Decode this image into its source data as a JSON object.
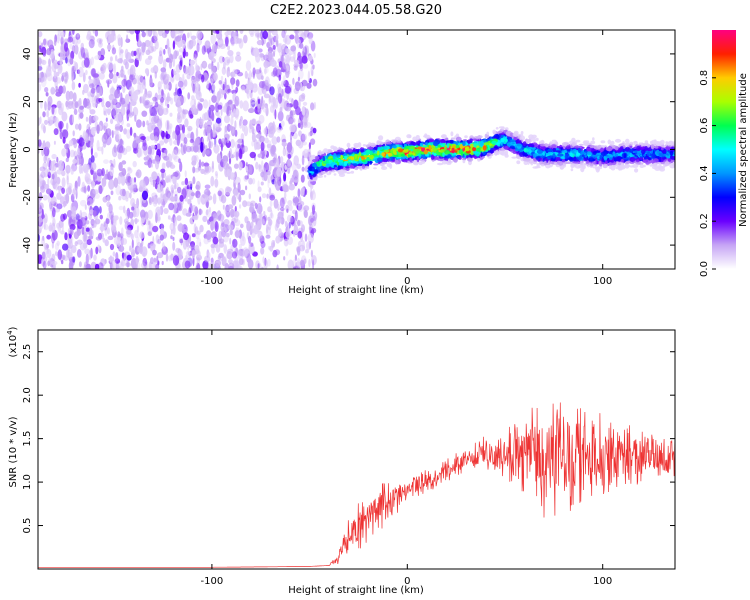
{
  "title": "C2E2.2023.044.05.58.G20",
  "chart_data": [
    {
      "type": "heatmap",
      "xlabel": "Height of straight line (km)",
      "ylabel": "Frequency (Hz)",
      "xlim": [
        -189,
        137
      ],
      "ylim": [
        -50,
        50
      ],
      "x_ticks": [
        -100,
        0,
        100
      ],
      "x_tick_labels": [
        "-100",
        "0",
        "100"
      ],
      "y_ticks": [
        -40,
        -20,
        0,
        20,
        40
      ],
      "y_tick_labels": [
        "-40",
        "-20",
        "0",
        "20",
        "40"
      ],
      "colorbar": {
        "label": "Normalized spectral amplitude",
        "range": [
          0,
          1
        ],
        "ticks": [
          0.0,
          0.2,
          0.4,
          0.6,
          0.8
        ],
        "tick_labels": [
          "0.0",
          "0.2",
          "0.4",
          "0.6",
          "0.8"
        ],
        "colormap": "rainbow (white-violet-blue-cyan-green-yellow-red-magenta)"
      },
      "noise_region_x": [
        -189,
        -47
      ],
      "signal_ridge": {
        "x": [
          -50,
          -45,
          -40,
          -30,
          -20,
          -10,
          0,
          10,
          20,
          30,
          40,
          45,
          50,
          60,
          70,
          80,
          90,
          100,
          110,
          120,
          137
        ],
        "frequency": [
          -10,
          -6,
          -5,
          -4,
          -3,
          -1,
          -1,
          0,
          0,
          0,
          1,
          3,
          4,
          0,
          -2,
          -2,
          -2,
          -3,
          -2,
          -2,
          -2
        ],
        "peak_amplitude": [
          0.4,
          0.6,
          0.7,
          0.8,
          0.8,
          0.85,
          0.9,
          0.95,
          0.95,
          0.95,
          0.85,
          0.6,
          0.5,
          0.5,
          0.5,
          0.5,
          0.5,
          0.45,
          0.45,
          0.45,
          0.45
        ]
      }
    },
    {
      "type": "line",
      "xlabel": "Height of straight line (km)",
      "ylabel": "SNR (10 * v/v)",
      "y_multiplier_label": "(x10",
      "y_multiplier_exp": "4",
      "y_multiplier_close": ")",
      "xlim": [
        -189,
        137
      ],
      "ylim": [
        0,
        27500
      ],
      "x_ticks": [
        -100,
        0,
        100
      ],
      "x_tick_labels": [
        "-100",
        "0",
        "100"
      ],
      "y_ticks": [
        5000,
        10000,
        15000,
        20000,
        25000
      ],
      "y_tick_labels": [
        "0.5",
        "1.0",
        "1.5",
        "2.0",
        "2.5"
      ],
      "color": "#ee3333",
      "series": [
        {
          "x": [
            -189,
            -160,
            -130,
            -100,
            -70,
            -50,
            -40,
            -35,
            -30,
            -25,
            -20,
            -15,
            -10,
            -5,
            0,
            5,
            10,
            15,
            20,
            25,
            30,
            35,
            40,
            45,
            50,
            55,
            60,
            65,
            70,
            75,
            80,
            85,
            90,
            95,
            100,
            105,
            110,
            115,
            120,
            125,
            130,
            137
          ],
          "values": [
            200,
            200,
            200,
            200,
            250,
            300,
            400,
            1500,
            3500,
            5000,
            6000,
            7000,
            7500,
            8500,
            9000,
            9500,
            10000,
            10500,
            11500,
            12000,
            12500,
            13000,
            13200,
            13300,
            13500,
            13500,
            13300,
            13200,
            13000,
            13100,
            12900,
            12800,
            12900,
            13000,
            12800,
            12700,
            12800,
            12900,
            13000,
            12900,
            12800,
            12700
          ],
          "spread": [
            0,
            0,
            0,
            0,
            0,
            0,
            0,
            1000,
            2000,
            2500,
            3000,
            3000,
            2500,
            2000,
            1500,
            1500,
            1500,
            1500,
            1500,
            1500,
            1500,
            1800,
            2000,
            2500,
            3000,
            4000,
            5000,
            6000,
            6500,
            7000,
            6500,
            6000,
            6000,
            5500,
            5000,
            4500,
            4000,
            3500,
            3000,
            2800,
            2500,
            2500
          ]
        }
      ]
    }
  ]
}
